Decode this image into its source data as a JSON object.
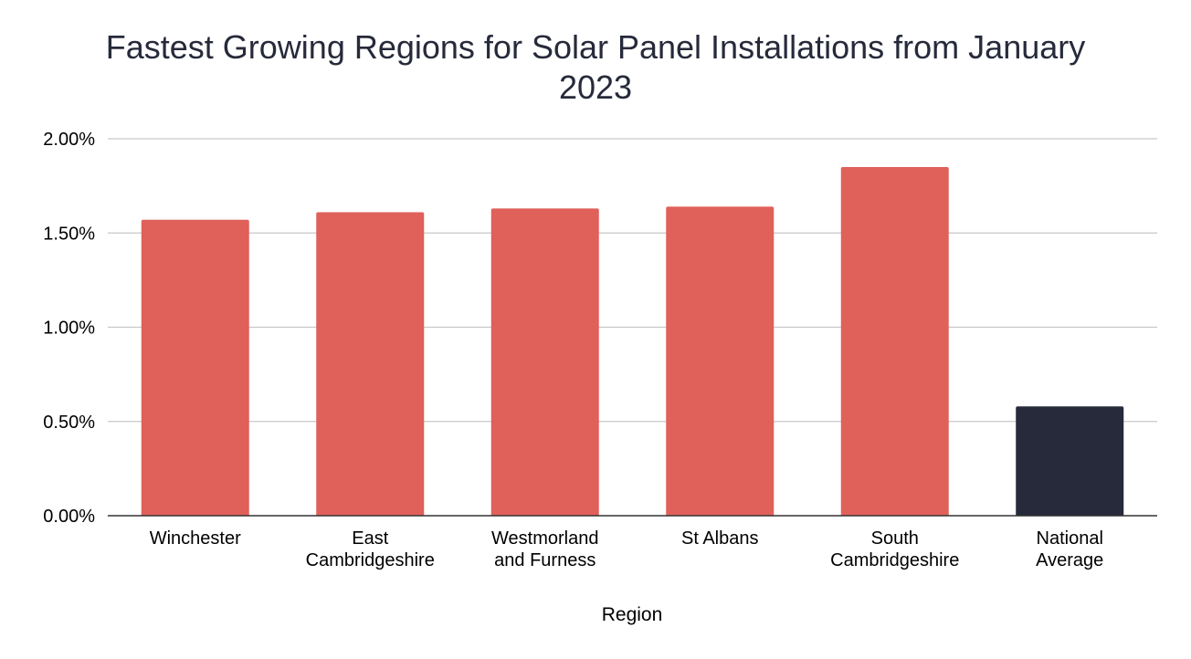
{
  "chart_data": {
    "type": "bar",
    "title_lines": [
      "Fastest Growing Regions for Solar Panel Installations from January",
      "2023"
    ],
    "xlabel": "Region",
    "ylabel": "",
    "ylim": [
      0,
      2.0
    ],
    "yticks": [
      {
        "value": 0.0,
        "label": "0.00%"
      },
      {
        "value": 0.5,
        "label": "0.50%"
      },
      {
        "value": 1.0,
        "label": "1.00%"
      },
      {
        "value": 1.5,
        "label": "1.50%"
      },
      {
        "value": 2.0,
        "label": "2.00%"
      }
    ],
    "grid": true,
    "legend": "none",
    "categories": [
      {
        "label_lines": [
          "Winchester"
        ],
        "value": 1.57,
        "color": "#e0605a"
      },
      {
        "label_lines": [
          "East",
          "Cambridgeshire"
        ],
        "value": 1.61,
        "color": "#e0605a"
      },
      {
        "label_lines": [
          "Westmorland",
          "and Furness"
        ],
        "value": 1.63,
        "color": "#e0605a"
      },
      {
        "label_lines": [
          "St Albans"
        ],
        "value": 1.64,
        "color": "#e0605a"
      },
      {
        "label_lines": [
          "South",
          "Cambridgeshire"
        ],
        "value": 1.85,
        "color": "#e0605a"
      },
      {
        "label_lines": [
          "National",
          "Average"
        ],
        "value": 0.58,
        "color": "#262a3a"
      }
    ]
  }
}
